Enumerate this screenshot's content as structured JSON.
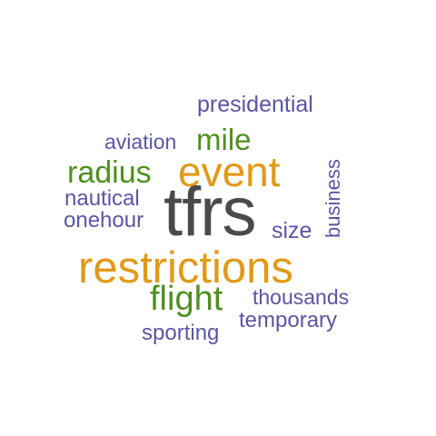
{
  "colors": {
    "background": "#ffffff",
    "purple": "#5b55a3",
    "green": "#4f8f1f",
    "orange": "#e09a16",
    "gray": "#4a4a4a"
  },
  "words": {
    "presidential": {
      "text": "presidential",
      "color": "#5b55a3",
      "rotated": false
    },
    "aviation": {
      "text": "aviation",
      "color": "#5b55a3",
      "rotated": false
    },
    "mile": {
      "text": "mile",
      "color": "#4f8f1f",
      "rotated": false
    },
    "business": {
      "text": "business",
      "color": "#5b55a3",
      "rotated": true
    },
    "radius": {
      "text": "radius",
      "color": "#4f8f1f",
      "rotated": false
    },
    "event": {
      "text": "event",
      "color": "#e09a16",
      "rotated": false
    },
    "nautical": {
      "text": "nautical",
      "color": "#5b55a3",
      "rotated": false
    },
    "onehour": {
      "text": "onehour",
      "color": "#5b55a3",
      "rotated": false
    },
    "tfrs": {
      "text": "tfrs",
      "color": "#4a4a4a",
      "rotated": false
    },
    "size": {
      "text": "size",
      "color": "#5b55a3",
      "rotated": false
    },
    "restrictions": {
      "text": "restrictions",
      "color": "#e09a16",
      "rotated": false
    },
    "flight": {
      "text": "flight",
      "color": "#4f8f1f",
      "rotated": false
    },
    "thousands": {
      "text": "thousands",
      "color": "#5b55a3",
      "rotated": false
    },
    "temporary": {
      "text": "temporary",
      "color": "#5b55a3",
      "rotated": false
    },
    "sporting": {
      "text": "sporting",
      "color": "#5b55a3",
      "rotated": false
    }
  }
}
